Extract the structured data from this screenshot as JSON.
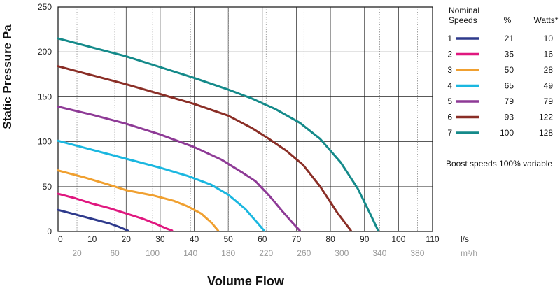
{
  "chart_data": {
    "type": "line",
    "xlabel": "Volume Flow",
    "ylabel": "Static Pressure Pa",
    "xlim": [
      0,
      110
    ],
    "ylim": [
      0,
      250
    ],
    "x_ticks": [
      0,
      10,
      20,
      30,
      40,
      50,
      60,
      70,
      80,
      90,
      100,
      110
    ],
    "y_ticks": [
      0,
      50,
      100,
      150,
      200,
      250
    ],
    "x_unit": "l/s",
    "secondary_x_unit": "m³/h",
    "secondary_x_ticks": [
      20,
      60,
      100,
      140,
      180,
      220,
      260,
      300,
      340,
      380
    ],
    "grid": true,
    "legend_position": "right",
    "legend_headers": {
      "speed": "Nominal Speeds",
      "percent": "%",
      "watts": "Watts*"
    },
    "note": "Boost speeds 100% variable",
    "series": [
      {
        "name": "1",
        "percent": "21",
        "watts": "10",
        "color": "#2e3a8c",
        "points": [
          [
            0,
            24
          ],
          [
            5,
            19
          ],
          [
            10,
            14
          ],
          [
            15,
            9
          ],
          [
            18,
            5
          ],
          [
            20.5,
            1
          ]
        ]
      },
      {
        "name": "2",
        "percent": "35",
        "watts": "16",
        "color": "#e0187f",
        "points": [
          [
            0,
            42
          ],
          [
            5,
            37
          ],
          [
            10,
            31
          ],
          [
            15,
            26
          ],
          [
            20,
            20
          ],
          [
            25,
            14
          ],
          [
            29,
            8
          ],
          [
            32,
            3
          ],
          [
            33.5,
            1
          ]
        ]
      },
      {
        "name": "3",
        "percent": "50",
        "watts": "28",
        "color": "#f0a030",
        "points": [
          [
            0,
            68
          ],
          [
            8,
            60
          ],
          [
            15,
            52
          ],
          [
            20,
            46
          ],
          [
            28,
            40
          ],
          [
            34,
            34
          ],
          [
            38,
            28
          ],
          [
            42,
            20
          ],
          [
            45,
            10
          ],
          [
            47,
            1
          ]
        ]
      },
      {
        "name": "4",
        "percent": "65",
        "watts": "49",
        "color": "#1ab7e0",
        "points": [
          [
            0,
            101
          ],
          [
            10,
            91
          ],
          [
            20,
            81
          ],
          [
            30,
            71
          ],
          [
            38,
            62
          ],
          [
            45,
            52
          ],
          [
            50,
            41
          ],
          [
            55,
            25
          ],
          [
            58,
            12
          ],
          [
            60.5,
            1
          ]
        ]
      },
      {
        "name": "5",
        "percent": "79",
        "watts": "79",
        "color": "#8e3a96",
        "points": [
          [
            0,
            139
          ],
          [
            10,
            130
          ],
          [
            20,
            120
          ],
          [
            30,
            108
          ],
          [
            40,
            94
          ],
          [
            48,
            80
          ],
          [
            54,
            66
          ],
          [
            58,
            56
          ],
          [
            62,
            40
          ],
          [
            66,
            22
          ],
          [
            69,
            9
          ],
          [
            71,
            1
          ]
        ]
      },
      {
        "name": "6",
        "percent": "93",
        "watts": "122",
        "color": "#8a2e26",
        "points": [
          [
            0,
            184
          ],
          [
            10,
            174
          ],
          [
            20,
            164
          ],
          [
            30,
            153
          ],
          [
            40,
            142
          ],
          [
            50,
            129
          ],
          [
            57,
            115
          ],
          [
            62,
            103
          ],
          [
            67,
            90
          ],
          [
            72,
            74
          ],
          [
            77,
            50
          ],
          [
            82,
            21
          ],
          [
            86,
            1
          ]
        ]
      },
      {
        "name": "7",
        "percent": "100",
        "watts": "128",
        "color": "#148a8a",
        "points": [
          [
            0,
            215
          ],
          [
            10,
            205
          ],
          [
            20,
            195
          ],
          [
            30,
            183
          ],
          [
            40,
            171
          ],
          [
            50,
            158
          ],
          [
            57,
            148
          ],
          [
            64,
            136
          ],
          [
            71,
            121
          ],
          [
            77,
            103
          ],
          [
            83,
            77
          ],
          [
            88,
            48
          ],
          [
            92,
            17
          ],
          [
            94,
            1
          ]
        ]
      }
    ]
  }
}
